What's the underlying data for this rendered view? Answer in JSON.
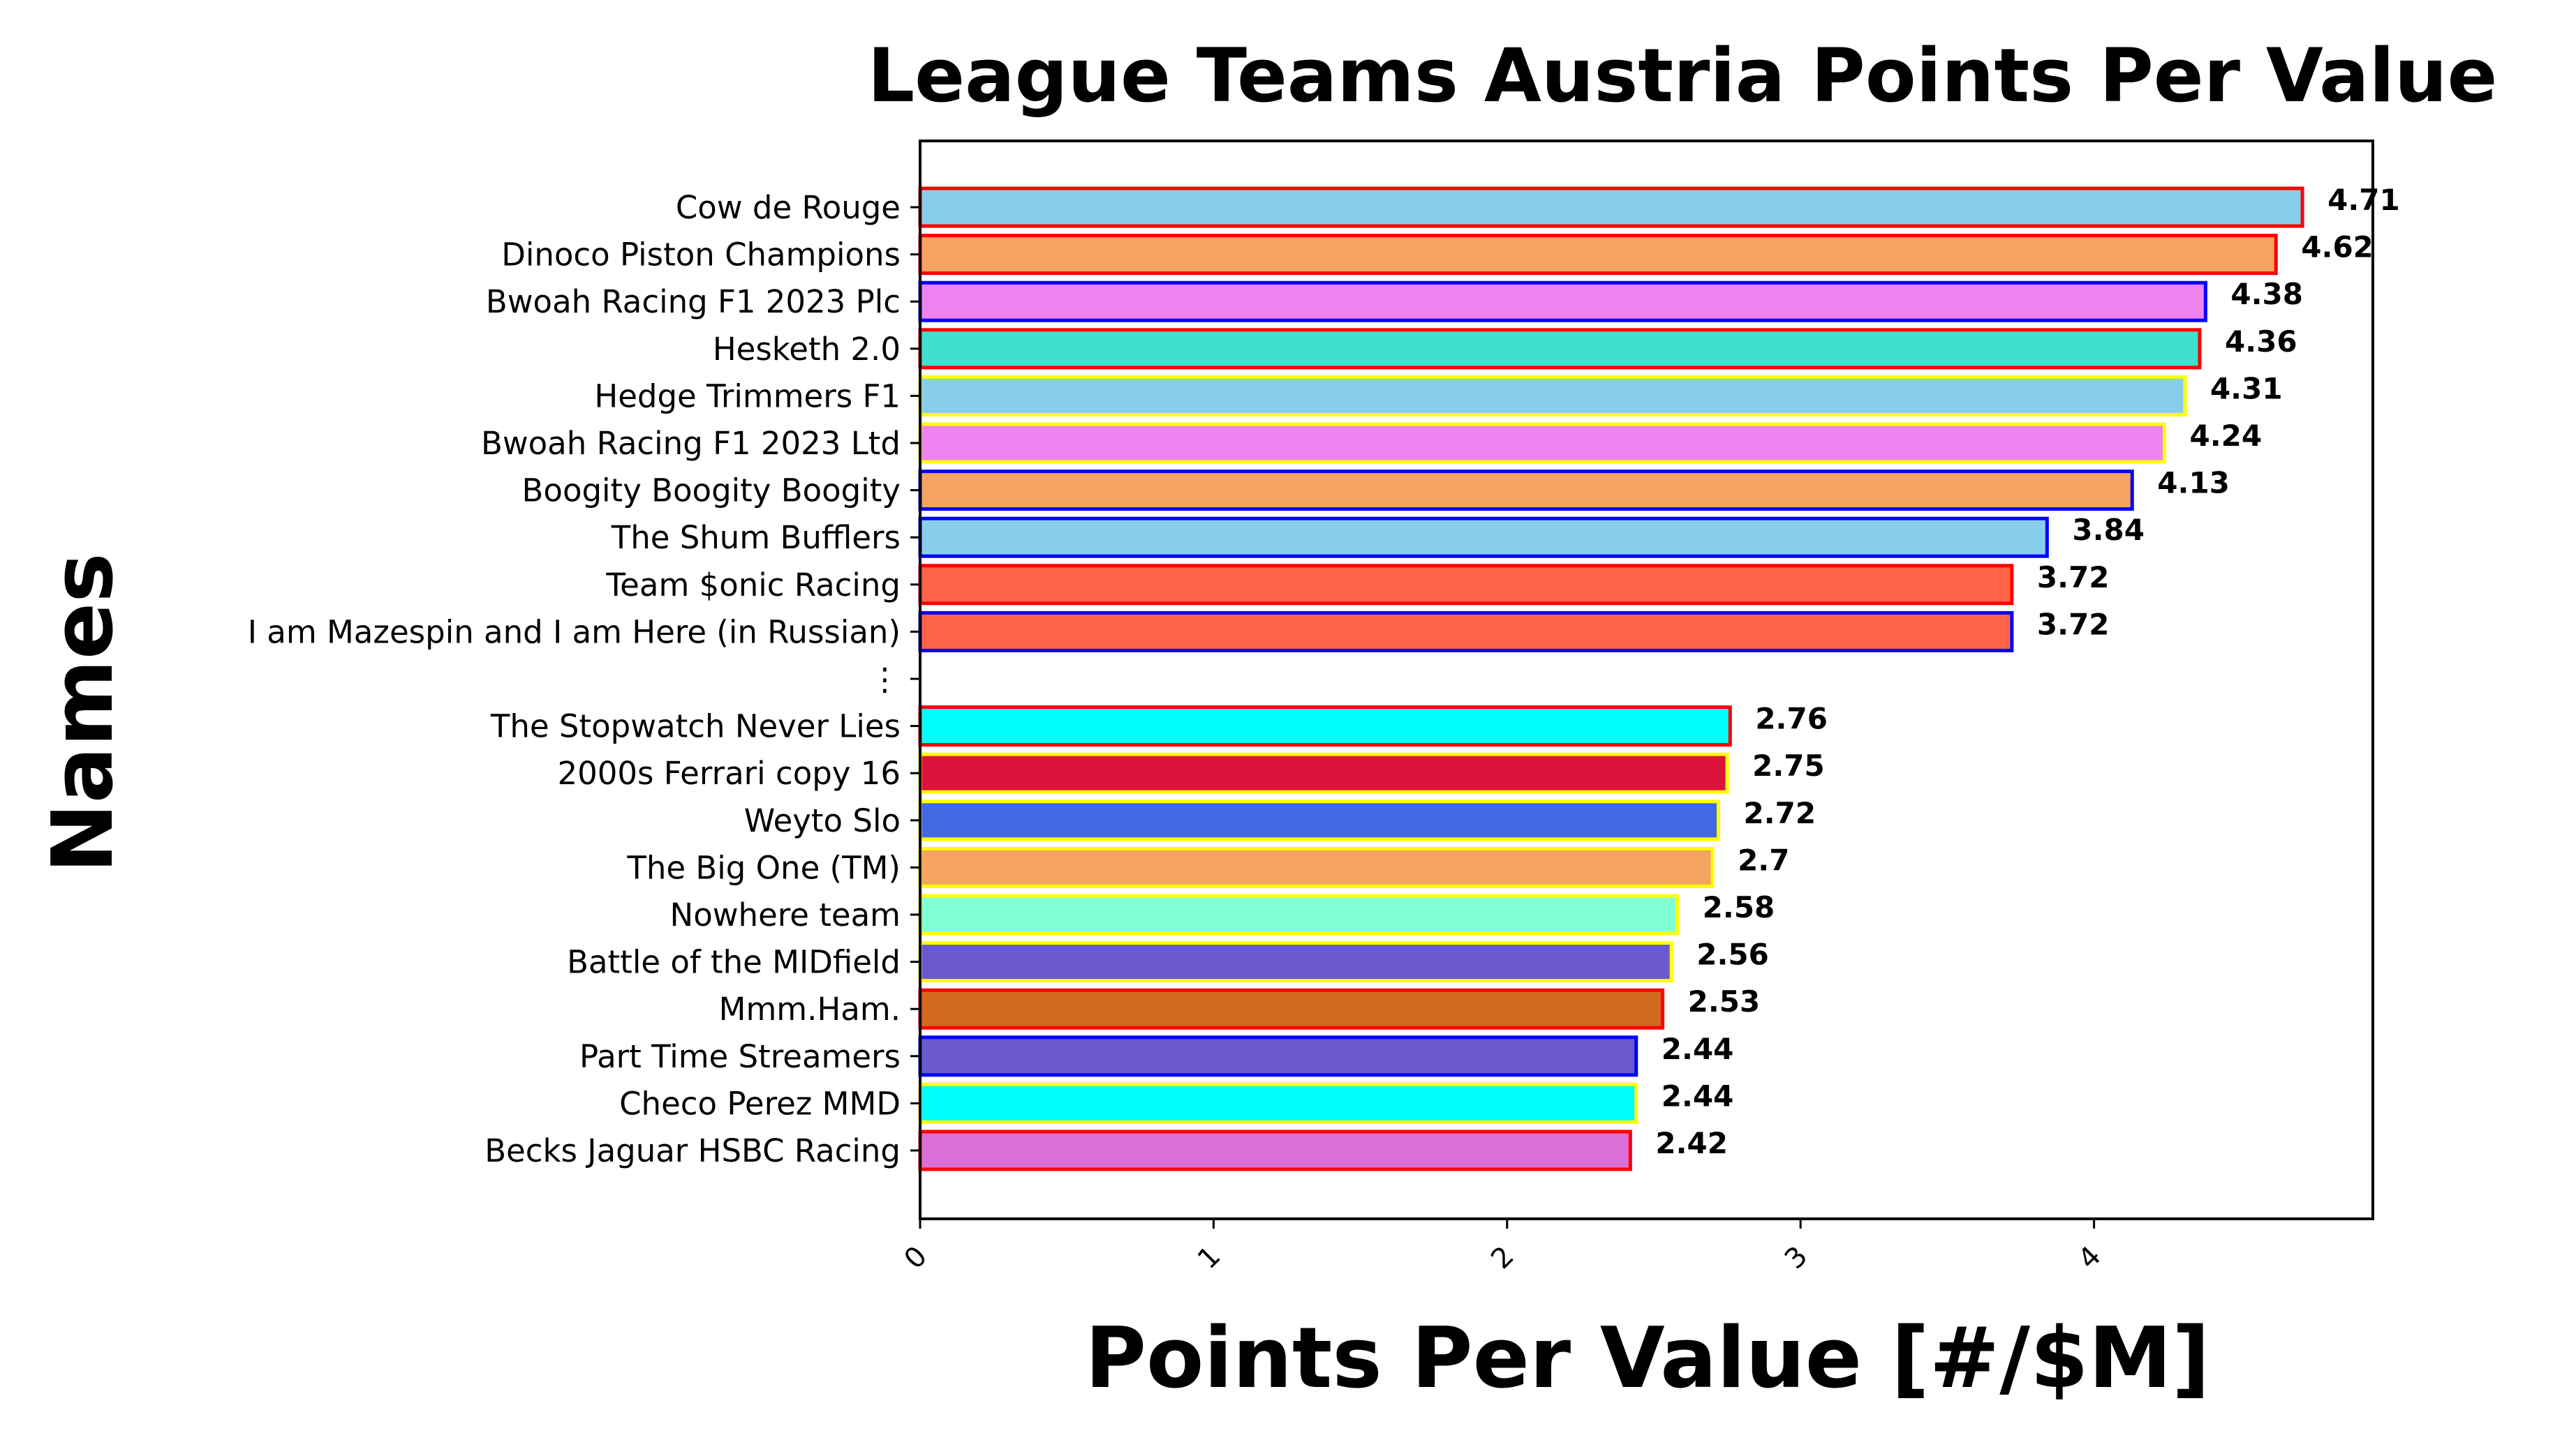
{
  "chart_data": {
    "type": "bar",
    "orientation": "horizontal",
    "title": "League Teams Austria Points Per Value",
    "xlabel": "Points Per Value [#/$M]",
    "ylabel": "Names",
    "xlim": [
      0,
      4.95
    ],
    "xticks": [
      "0",
      "1",
      "2",
      "3",
      "4"
    ],
    "grid": false,
    "legend": "none",
    "categories": [
      "Cow de Rouge",
      "Dinoco Piston Champions",
      "Bwoah Racing F1 2023 Plc",
      "Hesketh 2.0",
      "Hedge Trimmers F1",
      "Bwoah Racing F1 2023 Ltd",
      "Boogity Boogity Boogity",
      "The Shum Bufflers",
      "Team $onic Racing",
      "I am Mazespin and I am Here (in Russian)",
      "⋮",
      "The Stopwatch Never Lies",
      "2000s Ferrari copy 16",
      "Weyto Slo",
      "The Big One (TM)",
      "Nowhere team",
      "Battle of the MIDfield",
      "Mmm.Ham.",
      "Part Time Streamers",
      "Checo Perez MMD",
      "Becks Jaguar HSBC Racing"
    ],
    "values": [
      4.71,
      4.62,
      4.38,
      4.36,
      4.31,
      4.24,
      4.13,
      3.84,
      3.72,
      3.72,
      null,
      2.76,
      2.75,
      2.72,
      2.7,
      2.58,
      2.56,
      2.53,
      2.44,
      2.44,
      2.42
    ],
    "value_labels": [
      "4.71",
      "4.62",
      "4.38",
      "4.36",
      "4.31",
      "4.24",
      "4.13",
      "3.84",
      "3.72",
      "3.72",
      "",
      "2.76",
      "2.75",
      "2.72",
      "2.7",
      "2.58",
      "2.56",
      "2.53",
      "2.44",
      "2.44",
      "2.42"
    ],
    "fill_colors": [
      "#87ceeb",
      "#f4a460",
      "#ee82ee",
      "#40e0d0",
      "#87ceeb",
      "#ee82ee",
      "#f4a460",
      "#87ceeb",
      "#ff6347",
      "#ff6347",
      "",
      "#00ffff",
      "#dc143c",
      "#4169e1",
      "#f4a460",
      "#7fffd4",
      "#6a5acd",
      "#d2691e",
      "#6a5acd",
      "#00ffff",
      "#da70d6"
    ],
    "edge_colors": [
      "#ff0000",
      "#ff0000",
      "#0000ff",
      "#ff0000",
      "#ffff00",
      "#ffff00",
      "#0000ff",
      "#0000ff",
      "#ff0000",
      "#0000ff",
      "",
      "#ff0000",
      "#ffff00",
      "#ffff00",
      "#ffff00",
      "#ffff00",
      "#ffff00",
      "#ff0000",
      "#0000ff",
      "#ffff00",
      "#ff0000"
    ]
  }
}
